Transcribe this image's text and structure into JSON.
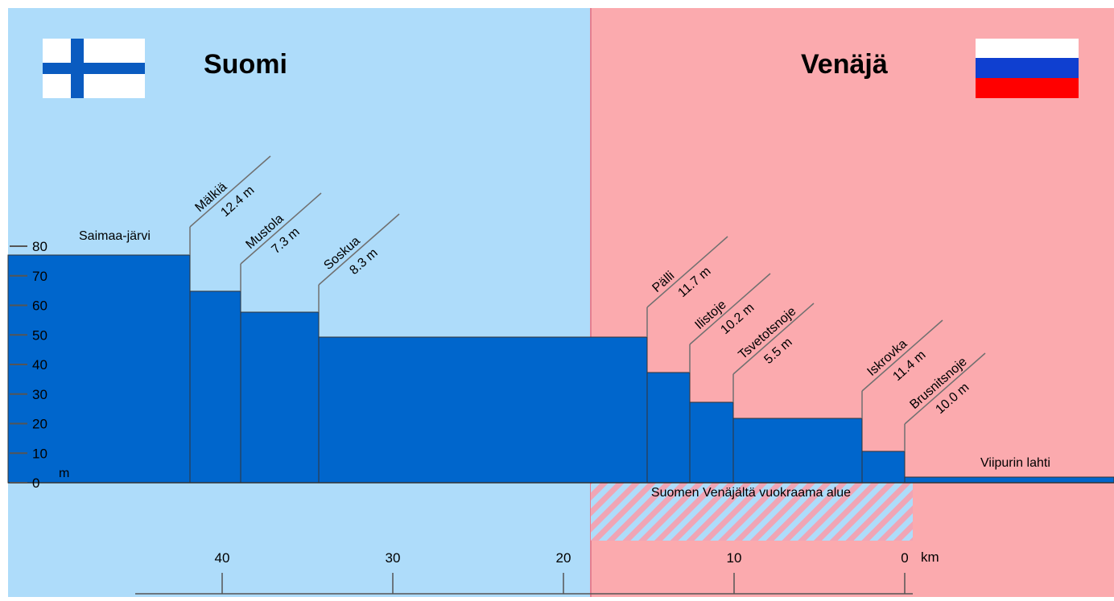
{
  "countries": {
    "left": "Suomi",
    "right": "Venäjä"
  },
  "flags": [
    "finland-flag",
    "russia-flag"
  ],
  "colors": {
    "finland_bg": "#aedcfa",
    "russia_bg": "#fbaaae",
    "water": "#0066cc",
    "fin_blue": "#0a5bc0",
    "rus_blue": "#0f3fd0",
    "rus_red": "#ff0000",
    "line": "#707070"
  },
  "y_axis": {
    "unit": "m",
    "ticks": [
      0,
      10,
      20,
      30,
      40,
      50,
      60,
      70,
      80
    ]
  },
  "x_axis": {
    "unit": "km",
    "ticks": [
      40,
      30,
      20,
      10,
      0
    ]
  },
  "lake": "Saimaa-järvi",
  "bay": "Viipurin lahti",
  "leased_area": "Suomen Venäjältä vuokraama alue",
  "locks": [
    {
      "name": "Mälkiä",
      "drop": "12.4 m"
    },
    {
      "name": "Mustola",
      "drop": "7.3 m"
    },
    {
      "name": "Soskua",
      "drop": "8.3 m"
    },
    {
      "name": "Pälli",
      "drop": "11.7 m"
    },
    {
      "name": "Ilistoje",
      "drop": "10.2 m"
    },
    {
      "name": "Tsvetotsnoje",
      "drop": "5.5 m"
    },
    {
      "name": "Iskrovka",
      "drop": "11.4 m"
    },
    {
      "name": "Brusnitsnoje",
      "drop": "10.0 m"
    }
  ]
}
